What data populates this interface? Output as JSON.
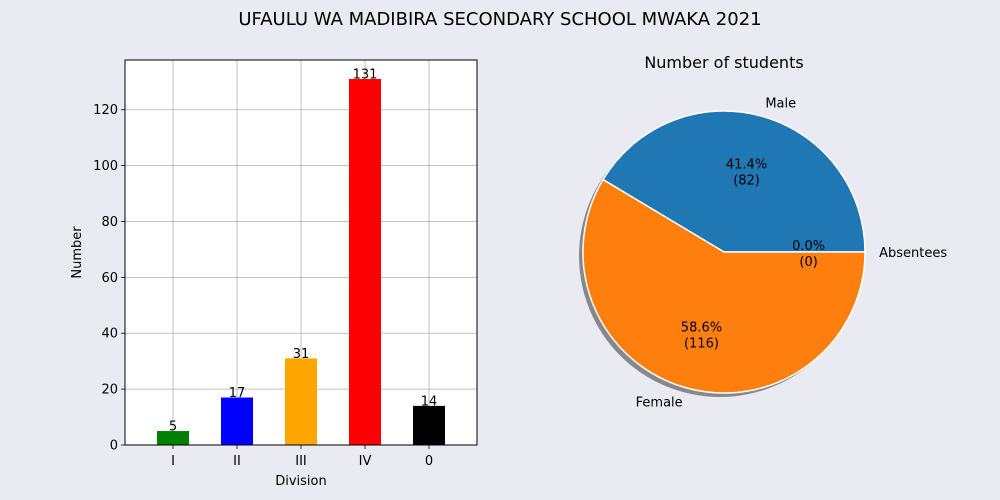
{
  "figure": {
    "title": "UFAULU WA MADIBIRA SECONDARY SCHOOL MWAKA 2021",
    "background": "#eaeaf2"
  },
  "chart_data": [
    {
      "type": "bar",
      "xlabel": "Division",
      "ylabel": "Number",
      "categories": [
        "I",
        "II",
        "III",
        "IV",
        "0"
      ],
      "values": [
        5,
        17,
        31,
        131,
        14
      ],
      "data_labels": [
        "5",
        "17",
        "31",
        "131",
        "14"
      ],
      "colors": [
        "#008000",
        "#0000ff",
        "#ffa500",
        "#ff0000",
        "#000000"
      ],
      "ylim": [
        0,
        137.8
      ],
      "yticks": [
        0,
        20,
        40,
        60,
        80,
        100,
        120
      ],
      "grid": true
    },
    {
      "type": "pie",
      "title": "Number of students",
      "labels": [
        "Male",
        "Female",
        "Absentees"
      ],
      "values": [
        82,
        116,
        0
      ],
      "value_labels": [
        "(82)",
        "(116)",
        "(0)"
      ],
      "percent_labels": [
        "41.4%",
        "58.6%",
        "0.0%"
      ],
      "colors": [
        "#1f77b4",
        "#ff7f0e",
        "#2ca02c"
      ],
      "shadow": true
    }
  ]
}
